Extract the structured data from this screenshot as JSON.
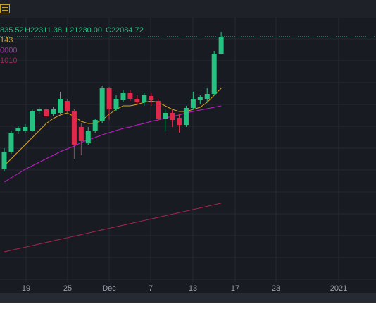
{
  "chart_data": {
    "type": "candlestick",
    "ohlc_header": [
      "835.52",
      "H22311.38",
      "L21230.00",
      "C22084.72"
    ],
    "up_color": "#26c281",
    "down_color": "#e0294a",
    "ylim": [
      9905,
      23030
    ],
    "x_labels": [
      "19",
      "25",
      "Dec",
      "7",
      "13",
      "17",
      "23",
      "2021"
    ],
    "candles": {
      "open": [
        15505,
        16380,
        17395,
        17430,
        17430,
        18375,
        18480,
        18235,
        18305,
        18900,
        18410,
        17605,
        16800,
        17430,
        17885,
        19530,
        18480,
        18935,
        19285,
        19005,
        18830,
        19145,
        18900,
        18025,
        18305,
        18060,
        17710,
        18550,
        18935,
        19005,
        19250,
        21245
      ],
      "high": [
        16555,
        17430,
        17675,
        17745,
        18515,
        18585,
        18550,
        18585,
        19355,
        19005,
        18480,
        17780,
        17605,
        18025,
        19635,
        19600,
        19180,
        19425,
        19425,
        19180,
        19285,
        19285,
        19005,
        18480,
        18480,
        18235,
        18655,
        19355,
        19180,
        19530,
        21385,
        22311.38
      ],
      "low": [
        15400,
        16275,
        17255,
        17325,
        17360,
        18270,
        18060,
        18130,
        18235,
        18305,
        16030,
        16205,
        16730,
        17325,
        17780,
        17955,
        18375,
        18830,
        18900,
        18725,
        18655,
        18655,
        17885,
        17430,
        17605,
        17325,
        17605,
        18480,
        18725,
        18830,
        19180,
        21230.0
      ],
      "close": [
        16380,
        17325,
        17535,
        17605,
        18410,
        18480,
        18130,
        18480,
        19005,
        18375,
        16730,
        16905,
        17430,
        17955,
        19530,
        18480,
        19005,
        19285,
        19005,
        18830,
        19180,
        18935,
        18025,
        18305,
        17955,
        17710,
        18550,
        19005,
        19075,
        19250,
        21245,
        22084.72
      ]
    },
    "series": [
      {
        "name": "143",
        "color": "#d9a520",
        "values": [
          15680,
          16030,
          16380,
          16730,
          17080,
          17430,
          17780,
          18025,
          18200,
          18305,
          18130,
          17885,
          17780,
          17780,
          17955,
          18235,
          18480,
          18655,
          18655,
          18725,
          18830,
          18900,
          18830,
          18655,
          18480,
          18375,
          18375,
          18480,
          18585,
          18830,
          19180,
          19530
        ]
      },
      {
        "name": "0000",
        "color": "#c21fc9",
        "values": [
          14875,
          15085,
          15295,
          15505,
          15680,
          15855,
          16030,
          16205,
          16380,
          16520,
          16660,
          16835,
          16975,
          17080,
          17220,
          17325,
          17430,
          17535,
          17605,
          17710,
          17780,
          17885,
          17955,
          18060,
          18130,
          18200,
          18305,
          18375,
          18445,
          18515,
          18585,
          18655
        ]
      },
      {
        "name": "1010",
        "color": "#a8264f",
        "values": [
          11410,
          11488,
          11566,
          11644,
          11722,
          11800,
          11878,
          11956,
          12034,
          12112,
          12190,
          12268,
          12346,
          12424,
          12502,
          12580,
          12658,
          12736,
          12814,
          12892,
          12970,
          13048,
          13126,
          13204,
          13282,
          13360,
          13438,
          13516,
          13594,
          13672,
          13750,
          13828
        ]
      }
    ]
  }
}
